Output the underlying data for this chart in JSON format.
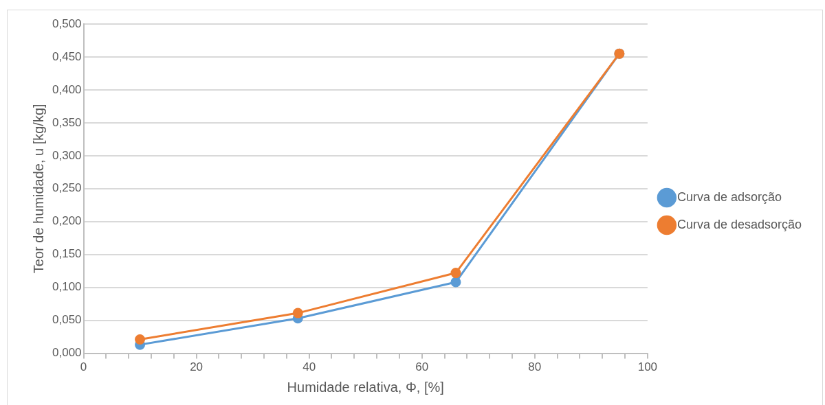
{
  "chart_data": {
    "type": "line",
    "xlabel": "Humidade relativa, Φ, [%]",
    "ylabel": "Teor de humidade, u [kg/kg]",
    "xlim": [
      0,
      100
    ],
    "xticks": [
      0,
      {
        "value": 4,
        "label": null
      },
      {
        "value": 8,
        "label": null
      },
      {
        "value": 12,
        "label": null
      },
      {
        "value": 16,
        "label": null
      },
      20,
      {
        "value": 24,
        "label": null
      },
      {
        "value": 28,
        "label": null
      },
      {
        "value": 32,
        "label": null
      },
      {
        "value": 36,
        "label": null
      },
      40,
      {
        "value": 44,
        "label": null
      },
      {
        "value": 48,
        "label": null
      },
      {
        "value": 52,
        "label": null
      },
      {
        "value": 56,
        "label": null
      },
      60,
      {
        "value": 64,
        "label": null
      },
      {
        "value": 68,
        "label": null
      },
      {
        "value": 72,
        "label": null
      },
      {
        "value": 76,
        "label": null
      },
      80,
      {
        "value": 84,
        "label": null
      },
      {
        "value": 88,
        "label": null
      },
      {
        "value": 92,
        "label": null
      },
      {
        "value": 96,
        "label": null
      },
      100
    ],
    "ylim": [
      0,
      0.5
    ],
    "yticks": [
      {
        "value": 0,
        "label": "0,000"
      },
      {
        "value": 0.05,
        "label": "0,050"
      },
      {
        "value": 0.1,
        "label": "0,100"
      },
      {
        "value": 0.15,
        "label": "0,150"
      },
      {
        "value": 0.2,
        "label": "0,200"
      },
      {
        "value": 0.25,
        "label": "0,250"
      },
      {
        "value": 0.3,
        "label": "0,300"
      },
      {
        "value": 0.35,
        "label": "0,350"
      },
      {
        "value": 0.4,
        "label": "0,400"
      },
      {
        "value": 0.45,
        "label": "0,450"
      },
      {
        "value": 0.5,
        "label": "0,500"
      }
    ],
    "x": [
      10,
      38,
      66,
      95
    ],
    "series": [
      {
        "name": "Curva de adsorção",
        "color": "#5b9bd5",
        "values": [
          0.013,
          0.053,
          0.108,
          0.455
        ]
      },
      {
        "name": "Curva de desadsorção",
        "color": "#ed7d31",
        "values": [
          0.021,
          0.061,
          0.122,
          0.455
        ]
      }
    ],
    "grid": "y",
    "legend": "right",
    "marker": "circle",
    "line_style": "solid"
  }
}
